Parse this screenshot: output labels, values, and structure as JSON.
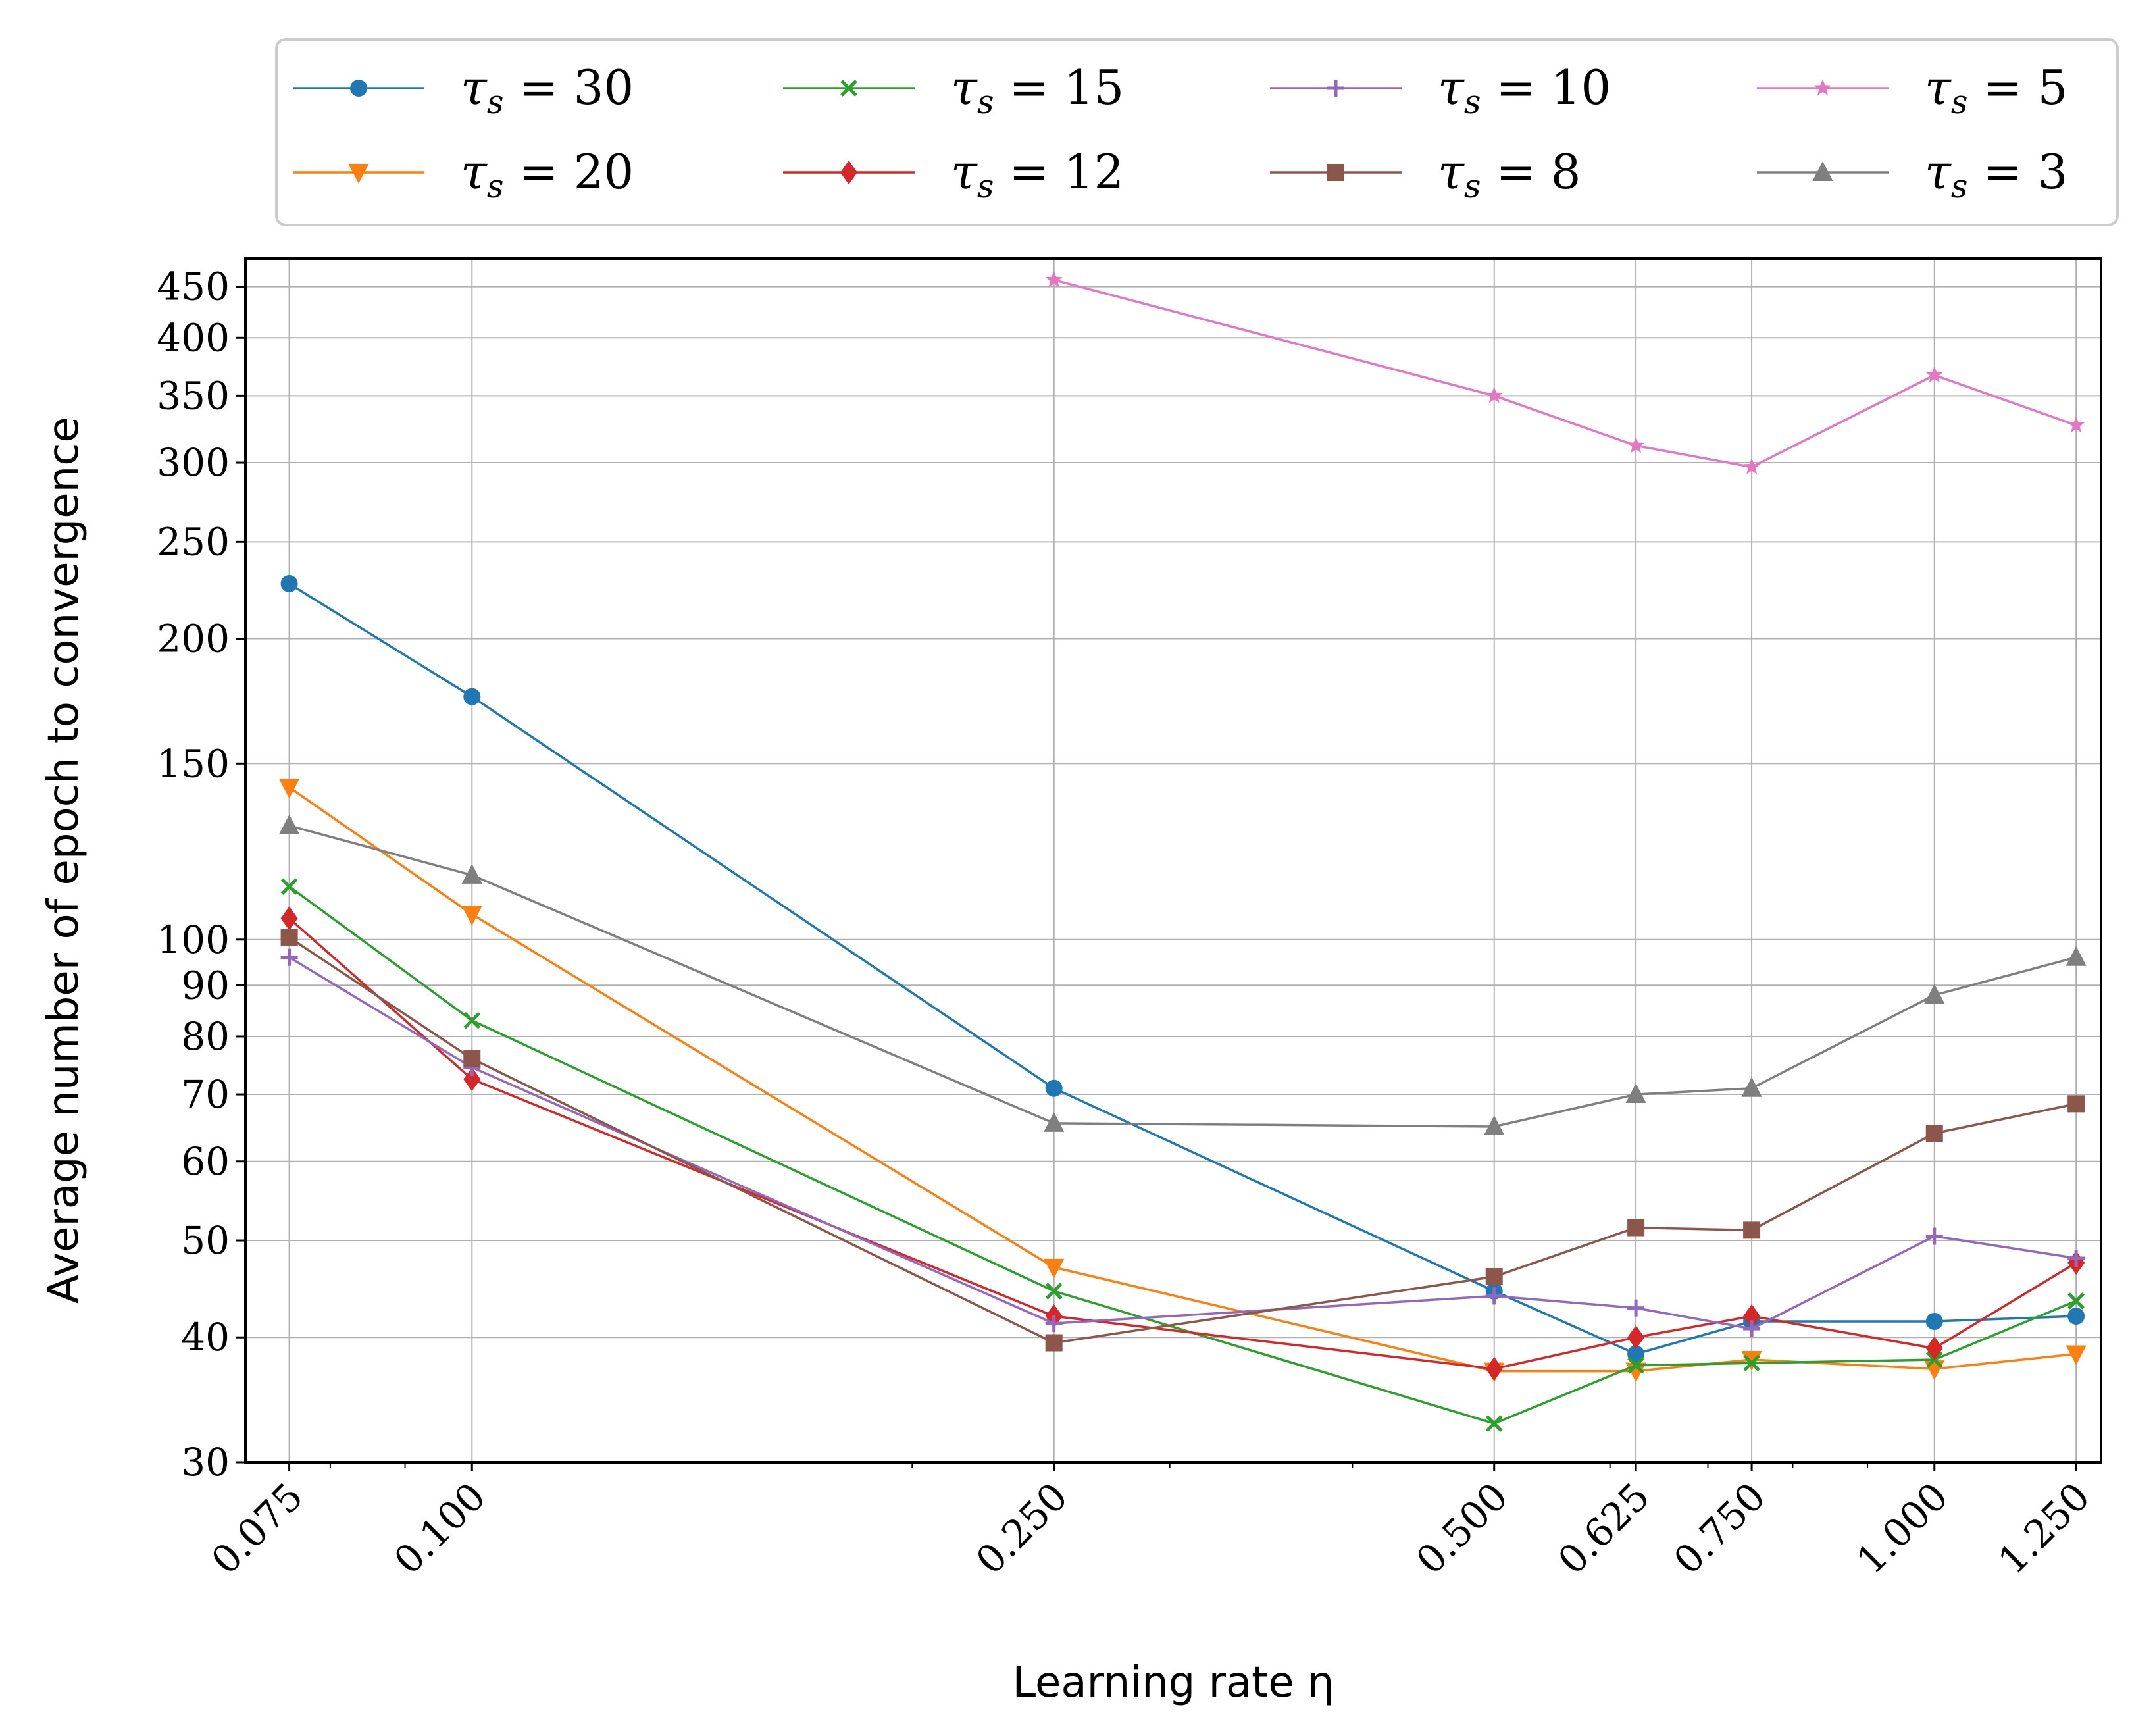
{
  "chart_data": {
    "type": "line",
    "xlabel": "Learning rate η",
    "ylabel": "Average number of epoch to convergence",
    "x_scale": "log",
    "y_scale": "log",
    "xlim": [
      0.07,
      1.3
    ],
    "ylim": [
      30,
      480
    ],
    "grid": true,
    "legend_position": "top, outside plot, 4 columns",
    "x": [
      0.075,
      0.1,
      0.25,
      0.5,
      0.625,
      0.75,
      1.0,
      1.25
    ],
    "x_tick_labels": [
      "0.075",
      "0.100",
      "0.250",
      "0.500",
      "0.625",
      "0.750",
      "1.000",
      "1.250"
    ],
    "y_ticks": [
      30,
      40,
      50,
      60,
      70,
      80,
      90,
      100,
      150,
      200,
      250,
      300,
      350,
      400,
      450
    ],
    "y_tick_labels": [
      "30",
      "40",
      "50",
      "60",
      "70",
      "80",
      "90",
      "100",
      "150",
      "200",
      "250",
      "300",
      "350",
      "400",
      "450"
    ],
    "series": [
      {
        "name": "τs = 30",
        "color": "#1f77b4",
        "marker": "circle",
        "values": [
          227,
          175,
          71,
          44.5,
          38.5,
          41.5,
          41.5,
          42
        ]
      },
      {
        "name": "τs = 20",
        "color": "#ff7f0e",
        "marker": "triangle-down",
        "values": [
          142,
          106,
          47,
          37,
          37,
          38,
          37.2,
          38.5
        ]
      },
      {
        "name": "τs = 15",
        "color": "#2ca02c",
        "marker": "x",
        "values": [
          113,
          83,
          44.5,
          null,
          37.5,
          37.7,
          38,
          43.5
        ]
      },
      {
        "name": "τs = 12",
        "color": "#d62728",
        "marker": "diamond",
        "values": [
          105,
          72.5,
          42,
          37.2,
          40,
          42,
          39,
          47.5
        ]
      },
      {
        "name": "τs = 10",
        "color": "#9467bd",
        "marker": "plus",
        "values": [
          96,
          74.5,
          41.3,
          44,
          42.8,
          40.8,
          50.5,
          48
        ]
      },
      {
        "name": "τs = 8",
        "color": "#8c564b",
        "marker": "square",
        "values": [
          100.5,
          76,
          39.5,
          46,
          51.5,
          51.2,
          64,
          68.5
        ]
      },
      {
        "name": "τs = 5",
        "color": "#e377c2",
        "marker": "star",
        "values": [
          null,
          null,
          457,
          350,
          312,
          297,
          367,
          327
        ]
      },
      {
        "name": "τs = 3",
        "color": "#7f7f7f",
        "marker": "triangle-up",
        "values": [
          130,
          116,
          65.5,
          65,
          70,
          71,
          88,
          96
        ]
      }
    ],
    "legend_entries": [
      {
        "prefix": "τ",
        "sub": "s",
        "suffix": " = 30"
      },
      {
        "prefix": "τ",
        "sub": "s",
        "suffix": " = 20"
      },
      {
        "prefix": "τ",
        "sub": "s",
        "suffix": " = 15"
      },
      {
        "prefix": "τ",
        "sub": "s",
        "suffix": " = 12"
      },
      {
        "prefix": "τ",
        "sub": "s",
        "suffix": " = 10"
      },
      {
        "prefix": "τ",
        "sub": "s",
        "suffix": " = 8"
      },
      {
        "prefix": "τ",
        "sub": "s",
        "suffix": " = 5"
      },
      {
        "prefix": "τ",
        "sub": "s",
        "suffix": " = 3"
      }
    ],
    "extra_points": [
      {
        "series": "τs = 15",
        "x": 0.5,
        "y": 32.8
      }
    ]
  }
}
